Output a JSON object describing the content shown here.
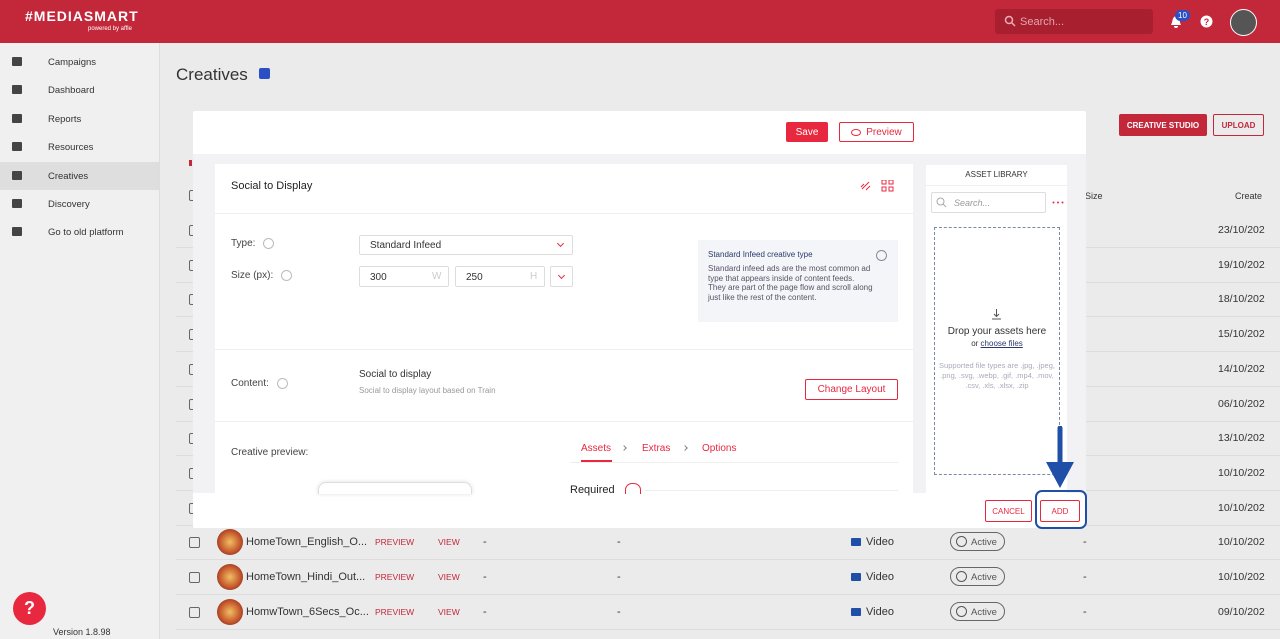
{
  "header": {
    "logo": "#MEDIASMART",
    "tagline": "powered by affle",
    "search": "Search...",
    "notifications": "10"
  },
  "sidebar": {
    "items": [
      "Campaigns",
      "Dashboard",
      "Reports",
      "Resources",
      "Creatives",
      "Discovery",
      "Go to old platform"
    ],
    "version": "Version 1.8.98"
  },
  "page": {
    "title": "Creatives",
    "buttons": [
      "CREATIVE STUDIO",
      "UPLOAD"
    ],
    "columns": [
      "Size",
      "Create"
    ],
    "dates": [
      "23/10/202",
      "19/10/202",
      "18/10/202",
      "15/10/202",
      "14/10/202",
      "06/10/202",
      "13/10/202",
      "10/10/202",
      "10/10/202",
      "10/10/202",
      "10/10/202",
      "09/10/202"
    ],
    "rows": [
      {
        "name": "HomeTown_English_O...",
        "preview": "PREVIEW",
        "view": "VIEW",
        "col1": "-",
        "col2": "-",
        "type": "Video",
        "status": "Active",
        "col3": "-"
      },
      {
        "name": "HomeTown_Hindi_Out...",
        "preview": "PREVIEW",
        "view": "VIEW",
        "col1": "-",
        "col2": "-",
        "type": "Video",
        "status": "Active",
        "col3": "-"
      },
      {
        "name": "HomwTown_6Secs_Oc...",
        "preview": "PREVIEW",
        "view": "VIEW",
        "col1": "-",
        "col2": "-",
        "type": "Video",
        "status": "Active",
        "col3": "-"
      }
    ]
  },
  "modal": {
    "save": "Save",
    "preview": "Preview",
    "card_title": "Social to Display",
    "type_label": "Type:",
    "type_value": "Standard Infeed",
    "size_label": "Size (px):",
    "width": "300",
    "width_unit": "W",
    "height": "250",
    "height_unit": "H",
    "info_title": "Standard Infeed creative type",
    "info_text": "Standard infeed ads are the most common ad type that appears inside of content feeds. They are part of the page flow and scroll along just like the rest of the content.",
    "content_label": "Content:",
    "content_value": "Social to display",
    "content_sub": "Social to display layout based on Train",
    "change_layout": "Change Layout",
    "preview_label": "Creative preview:",
    "tabs": [
      "Assets",
      "Extras",
      "Options"
    ],
    "required": "Required",
    "library": {
      "title": "ASSET LIBRARY",
      "search": "Search...",
      "drop": "Drop your assets here",
      "or": "or",
      "choose": "choose files",
      "types": "Supported file types are .jpg, .jpeg, .png, .svg, .webp, .gif, .mp4, .mov, .csv, .xls, .xlsx, .zip"
    },
    "cancel": "CANCEL",
    "add": "ADD"
  },
  "help": "?"
}
